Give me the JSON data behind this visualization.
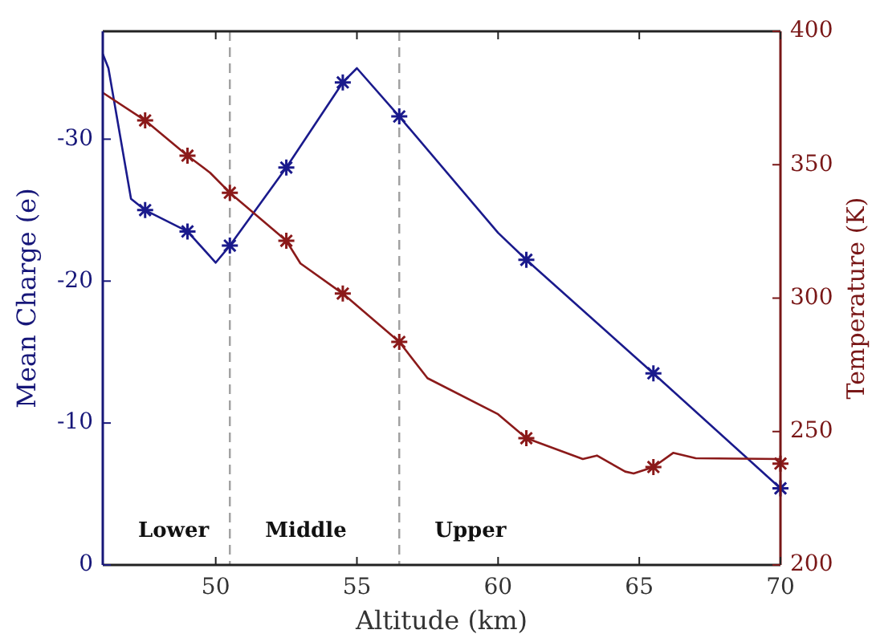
{
  "chart_data": {
    "type": "line",
    "xlabel": "Altitude (km)",
    "ylabel": "Mean Charge (e)",
    "y2label": "Temperature (K)",
    "xlim": [
      46,
      70
    ],
    "xticks": [
      50,
      55,
      60,
      65,
      70
    ],
    "ylim": [
      0,
      -37.6
    ],
    "yticks": [
      0,
      -10,
      -20,
      -30
    ],
    "y2lim": [
      200,
      400
    ],
    "y2ticks": [
      200,
      250,
      300,
      350,
      400
    ],
    "series": [
      {
        "axis": "y",
        "color": "#1a1a8c",
        "marker": "none",
        "x": [
          46,
          46.2,
          47,
          47.5,
          49,
          50,
          50.5,
          52.5,
          54.5,
          55,
          56.5,
          60,
          61,
          65.5,
          70
        ],
        "values": [
          -36,
          -35,
          -25.8,
          -25,
          -23.5,
          -21.3,
          -22.5,
          -28,
          -34,
          -35,
          -31.6,
          -23.4,
          -21.5,
          -13.5,
          -5.4
        ]
      },
      {
        "type": "scatter",
        "axis": "y",
        "color": "#1a1a8c",
        "marker": "cross",
        "x": [
          47.5,
          49,
          50.5,
          52.5,
          54.5,
          56.5,
          61,
          65.5,
          70
        ],
        "values": [
          -25,
          -23.5,
          -22.5,
          -28,
          -34,
          -31.6,
          -21.5,
          -13.5,
          -5.4
        ]
      },
      {
        "axis": "y2",
        "color": "#8b1a1a",
        "marker": "none",
        "x": [
          46,
          47.5,
          49,
          49.8,
          50.5,
          52,
          52.5,
          53,
          54.5,
          56.5,
          57.5,
          60,
          61,
          63,
          63.5,
          64,
          64.5,
          64.8,
          65.5,
          66.2,
          67,
          70
        ],
        "values": [
          377,
          366.6,
          353.4,
          347,
          339.5,
          326,
          321.5,
          313,
          301.7,
          283.6,
          270,
          256.5,
          247.5,
          239.7,
          241,
          238,
          235,
          234.3,
          236.7,
          242,
          240,
          239.7
        ]
      },
      {
        "type": "scatter",
        "axis": "y2",
        "color": "#8b1a1a",
        "marker": "cross",
        "x": [
          47.5,
          49,
          50.5,
          52.5,
          54.5,
          56.5,
          61,
          65.5,
          70
        ],
        "values": [
          366.6,
          353.4,
          339.5,
          321.5,
          301.7,
          283.6,
          247.5,
          236.7,
          238
        ]
      }
    ],
    "ref_lines": [
      {
        "axis": "x",
        "value": 50.5,
        "color": "#a0a0a0",
        "line_style": "dashed"
      },
      {
        "axis": "x",
        "value": 56.5,
        "color": "#a0a0a0",
        "line_style": "dashed"
      }
    ],
    "annotations": [
      "Lower",
      "Middle",
      "Upper"
    ],
    "grid": false
  }
}
